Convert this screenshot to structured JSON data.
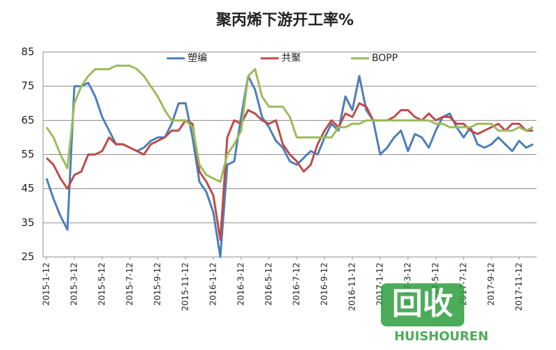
{
  "chart_data": {
    "type": "line",
    "title": "聚丙烯下游开工率%",
    "categories": [
      "2015-1-12",
      null,
      null,
      null,
      "2015-3-12",
      null,
      null,
      null,
      "2015-5-12",
      null,
      null,
      null,
      "2015-7-12",
      null,
      null,
      null,
      "2015-9-12",
      null,
      null,
      null,
      "2015-11-12",
      null,
      null,
      null,
      "2016-1-12",
      null,
      null,
      null,
      "2016-3-12",
      null,
      null,
      null,
      "2016-5-12",
      null,
      null,
      null,
      "2016-7-12",
      null,
      null,
      null,
      "2016-9-12",
      null,
      null,
      null,
      "2016-11-12",
      null,
      null,
      null,
      "2017-1-12",
      null,
      null,
      null,
      "2017-3-12",
      null,
      null,
      null,
      "2017-5-12",
      null,
      null,
      null,
      "2017-7-12",
      null,
      null,
      null,
      "2017-9-12",
      null,
      null,
      null,
      "2017-11-12",
      null,
      null
    ],
    "series": [
      {
        "name": "塑编",
        "color": "#4a7ebb",
        "values": [
          48,
          42,
          37,
          33,
          75,
          75,
          76,
          72,
          66,
          62,
          58,
          58,
          57,
          56,
          57,
          59,
          60,
          60,
          64,
          70,
          70,
          60,
          47,
          44,
          38,
          25,
          52,
          53,
          66,
          78,
          74,
          66,
          63,
          59,
          57,
          53,
          52,
          54,
          56,
          55,
          60,
          64,
          62,
          72,
          68,
          78,
          68,
          65,
          55,
          57,
          60,
          62,
          56,
          61,
          60,
          57,
          62,
          66,
          67,
          63,
          60,
          63,
          58,
          57,
          58,
          60,
          58,
          56,
          59,
          57,
          58
        ]
      },
      {
        "name": "共聚",
        "color": "#be4b48",
        "values": [
          54,
          52,
          48,
          45,
          49,
          50,
          55,
          55,
          56,
          60,
          58,
          58,
          57,
          56,
          55,
          58,
          59,
          60,
          62,
          62,
          65,
          64,
          50,
          47,
          43,
          30,
          60,
          65,
          64,
          68,
          67,
          65,
          64,
          65,
          58,
          55,
          53,
          50,
          52,
          58,
          62,
          65,
          63,
          67,
          66,
          70,
          69,
          65,
          65,
          65,
          66,
          68,
          68,
          66,
          65,
          67,
          65,
          66,
          66,
          64,
          64,
          62,
          61,
          62,
          63,
          64,
          62,
          64,
          64,
          62,
          62
        ]
      },
      {
        "name": "BOPP",
        "color": "#9bbb59",
        "values": [
          63,
          60,
          55,
          51,
          70,
          75,
          78,
          80,
          80,
          80,
          81,
          81,
          81,
          80,
          78,
          75,
          72,
          68,
          65,
          65,
          65,
          63,
          52,
          49,
          48,
          47,
          55,
          58,
          62,
          78,
          80,
          72,
          69,
          69,
          69,
          66,
          60,
          60,
          60,
          60,
          60,
          60,
          63,
          63,
          64,
          64,
          65,
          65,
          65,
          65,
          65,
          65,
          65,
          65,
          65,
          65,
          64,
          64,
          63,
          63,
          63,
          63,
          64,
          64,
          64,
          62,
          62,
          62,
          63,
          62,
          63
        ]
      }
    ],
    "ylim": [
      25,
      85
    ],
    "yticks": [
      25,
      35,
      45,
      55,
      65,
      75,
      85
    ],
    "grid": true,
    "legend": "top"
  },
  "watermark": {
    "icon": "回收",
    "text": "HUISHOUREN"
  }
}
